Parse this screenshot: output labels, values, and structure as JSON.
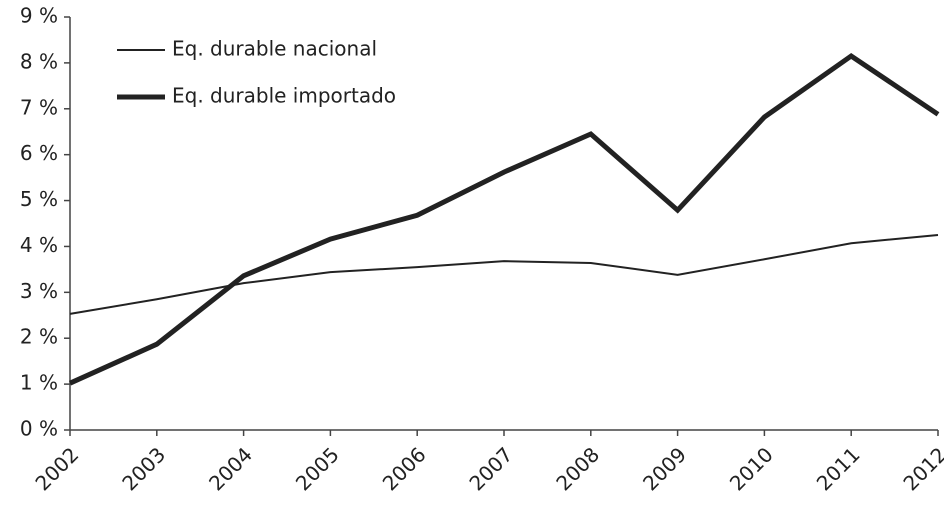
{
  "chart_data": {
    "type": "line",
    "categories": [
      "2002",
      "2003",
      "2004",
      "2005",
      "2006",
      "2007",
      "2008",
      "2009",
      "2010",
      "2011",
      "2012"
    ],
    "series": [
      {
        "name": "Eq. durable nacional",
        "color": "#222222",
        "values": [
          2.53,
          2.85,
          3.2,
          3.44,
          3.55,
          3.68,
          3.64,
          3.38,
          3.72,
          4.07,
          4.25
        ]
      },
      {
        "name": "Eq. durable importado",
        "color": "#222222",
        "values": [
          1.02,
          1.87,
          3.36,
          4.16,
          4.68,
          5.62,
          6.45,
          4.79,
          6.82,
          8.15,
          6.88
        ]
      }
    ],
    "ylim": [
      0,
      9
    ],
    "yticks": [
      {
        "value": 0,
        "label": "0 %"
      },
      {
        "value": 1,
        "label": "1 %"
      },
      {
        "value": 2,
        "label": "2 %"
      },
      {
        "value": 3,
        "label": "3 %"
      },
      {
        "value": 4,
        "label": "4 %"
      },
      {
        "value": 5,
        "label": "5 %"
      },
      {
        "value": 6,
        "label": "6 %"
      },
      {
        "value": 7,
        "label": "7 %"
      },
      {
        "value": 8,
        "label": "8 %"
      },
      {
        "value": 9,
        "label": "9 %"
      }
    ],
    "grid": false,
    "legend": "upper-left"
  }
}
